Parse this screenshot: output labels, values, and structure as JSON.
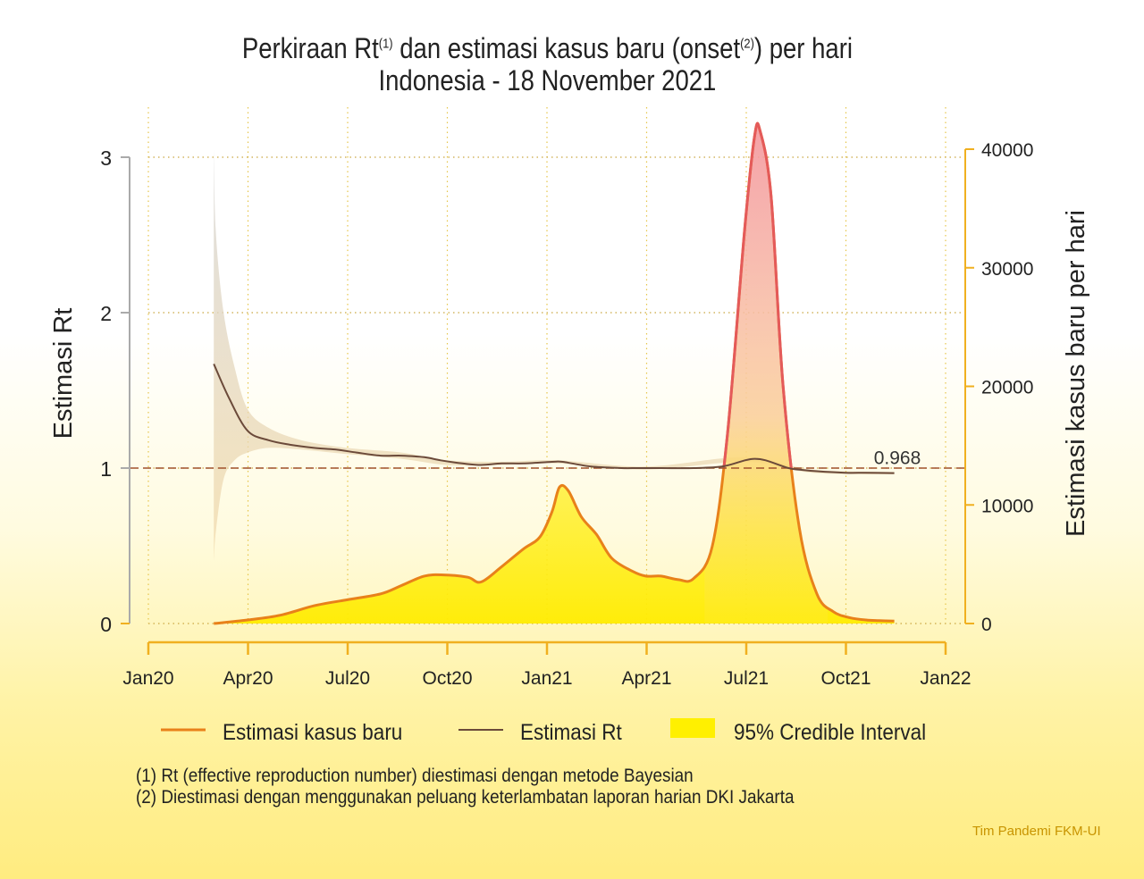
{
  "title": {
    "line1_pre": "Perkiraan Rt",
    "line1_sup1": "(1)",
    "line1_mid": " dan estimasi kasus baru (onset",
    "line1_sup2": "(2)",
    "line1_post": ") per hari",
    "line2": "Indonesia - 18 November 2021"
  },
  "legend": {
    "cases": "Estimasi kasus baru",
    "rt": "Estimasi Rt",
    "ci": "95% Credible Interval"
  },
  "notes": [
    "(1) Rt (effective reproduction number) diestimasi dengan metode Bayesian",
    "(2) Diestimasi dengan menggunakan peluang keterlambatan laporan harian DKI Jakarta"
  ],
  "credit": "Tim Pandemi FKM-UI",
  "colors": {
    "cases_line": "#e8811a",
    "rt_line": "#6b4a3a",
    "ci_fill": "#fff000",
    "peak_fill": "#f3a0a8",
    "axis": "#f0b020",
    "left_axis": "#aaaaaa",
    "ref_line": "#a0522d"
  },
  "chart_data": {
    "type": "line",
    "x_ticks": [
      "Jan20",
      "Apr20",
      "Jul20",
      "Oct20",
      "Jan21",
      "Apr21",
      "Jul21",
      "Oct21",
      "Jan22"
    ],
    "ylabel_left": "Estimasi Rt",
    "ylabel_right": "Estimasi kasus baru per hari",
    "y_left_ticks": [
      "0",
      "1",
      "2",
      "3"
    ],
    "y_right_ticks": [
      "0",
      "10000",
      "20000",
      "30000",
      "40000"
    ],
    "ylim_left": [
      0,
      3
    ],
    "ylim_right": [
      0,
      40000
    ],
    "reference_line": {
      "y": 1,
      "label": "0.968"
    },
    "grid": "dotted",
    "series": [
      {
        "name": "Estimasi kasus baru",
        "axis": "right",
        "x": [
          "2020-03-01",
          "2020-04-01",
          "2020-05-01",
          "2020-06-01",
          "2020-07-01",
          "2020-08-01",
          "2020-08-20",
          "2020-09-10",
          "2020-09-28",
          "2020-10-20",
          "2020-11-01",
          "2020-11-20",
          "2020-12-10",
          "2020-12-25",
          "2021-01-05",
          "2021-01-12",
          "2021-01-20",
          "2021-02-01",
          "2021-02-15",
          "2021-03-01",
          "2021-03-20",
          "2021-04-01",
          "2021-04-15",
          "2021-05-01",
          "2021-05-15",
          "2021-06-01",
          "2021-06-15",
          "2021-07-01",
          "2021-07-10",
          "2021-07-15",
          "2021-07-25",
          "2021-08-05",
          "2021-08-20",
          "2021-09-05",
          "2021-09-20",
          "2021-10-05",
          "2021-10-20",
          "2021-11-01",
          "2021-11-15"
        ],
        "y": [
          0,
          300,
          700,
          1500,
          2000,
          2500,
          3200,
          4000,
          4100,
          3900,
          3500,
          4800,
          6300,
          7300,
          9400,
          11500,
          11200,
          9000,
          7500,
          5500,
          4400,
          4000,
          4000,
          3700,
          3800,
          6500,
          16000,
          33500,
          41200,
          41500,
          36000,
          20000,
          8000,
          2500,
          1000,
          500,
          300,
          250,
          200
        ]
      },
      {
        "name": "Estimasi Rt",
        "axis": "left",
        "x": [
          "2020-03-01",
          "2020-03-15",
          "2020-04-01",
          "2020-04-20",
          "2020-05-10",
          "2020-06-01",
          "2020-06-20",
          "2020-07-10",
          "2020-08-01",
          "2020-08-20",
          "2020-09-10",
          "2020-09-25",
          "2020-10-15",
          "2020-11-01",
          "2020-11-20",
          "2020-12-10",
          "2021-01-05",
          "2021-01-15",
          "2021-02-10",
          "2021-03-10",
          "2021-03-20",
          "2021-04-15",
          "2021-05-15",
          "2021-06-10",
          "2021-07-01",
          "2021-07-10",
          "2021-07-20",
          "2021-08-10",
          "2021-08-20",
          "2021-09-05",
          "2021-10-01",
          "2021-10-20",
          "2021-11-15"
        ],
        "y": [
          1.67,
          1.45,
          1.24,
          1.18,
          1.15,
          1.13,
          1.12,
          1.1,
          1.08,
          1.08,
          1.07,
          1.05,
          1.03,
          1.02,
          1.03,
          1.03,
          1.04,
          1.04,
          1.01,
          1.0,
          1.0,
          1.0,
          1.0,
          1.01,
          1.05,
          1.06,
          1.05,
          1.0,
          0.99,
          0.98,
          0.97,
          0.97,
          0.968
        ]
      },
      {
        "name": "95% Credible Interval",
        "axis": "left",
        "x": [
          "2020-03-01",
          "2020-03-03",
          "2020-03-10",
          "2020-03-20",
          "2020-04-01",
          "2020-04-20",
          "2020-05-20",
          "2020-07-01",
          "2020-08-20",
          "2020-10-01",
          "2020-11-20",
          "2021-01-10",
          "2021-04-01",
          "2021-07-01",
          "2021-09-01",
          "2021-11-15"
        ],
        "lower": [
          0.4,
          0.6,
          0.93,
          1.05,
          1.1,
          1.13,
          1.12,
          1.09,
          1.06,
          1.02,
          1.02,
          1.03,
          0.99,
          1.04,
          0.97,
          0.96
        ],
        "upper": [
          3.05,
          2.5,
          2.0,
          1.65,
          1.38,
          1.26,
          1.18,
          1.13,
          1.1,
          1.05,
          1.04,
          1.05,
          1.01,
          1.07,
          0.99,
          0.975
        ]
      }
    ]
  }
}
